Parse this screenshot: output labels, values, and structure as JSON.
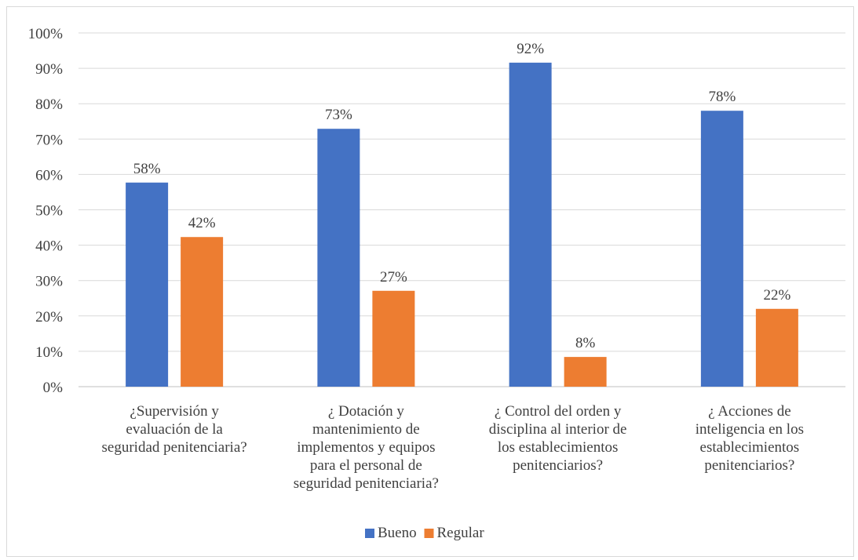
{
  "chart_data": {
    "type": "bar",
    "categories": [
      [
        "¿Supervisión y",
        "evaluación de la",
        "seguridad penitenciaria?"
      ],
      [
        "¿ Dotación y",
        "mantenimiento de",
        "implementos y equipos",
        "para el personal de",
        "seguridad penitenciaria?"
      ],
      [
        "¿ Control del orden y",
        "disciplina al interior de",
        "los establecimientos",
        "penitenciarios?"
      ],
      [
        "¿ Acciones de",
        "inteligencia en los",
        "establecimientos",
        "penitenciarios?"
      ]
    ],
    "series": [
      {
        "name": "Bueno",
        "color": "#4472C4",
        "values": [
          57.7,
          72.9,
          91.6,
          78.0
        ],
        "labels": [
          "58%",
          "73%",
          "92%",
          "78%"
        ]
      },
      {
        "name": "Regular",
        "color": "#ED7D31",
        "values": [
          42.3,
          27.1,
          8.4,
          22.0
        ],
        "labels": [
          "42%",
          "27%",
          "8%",
          "22%"
        ]
      }
    ],
    "yticks": [
      "0%",
      "10%",
      "20%",
      "30%",
      "40%",
      "50%",
      "60%",
      "70%",
      "80%",
      "90%",
      "100%"
    ],
    "ylim": [
      0,
      100
    ],
    "grid": true,
    "legend": "bottom"
  }
}
